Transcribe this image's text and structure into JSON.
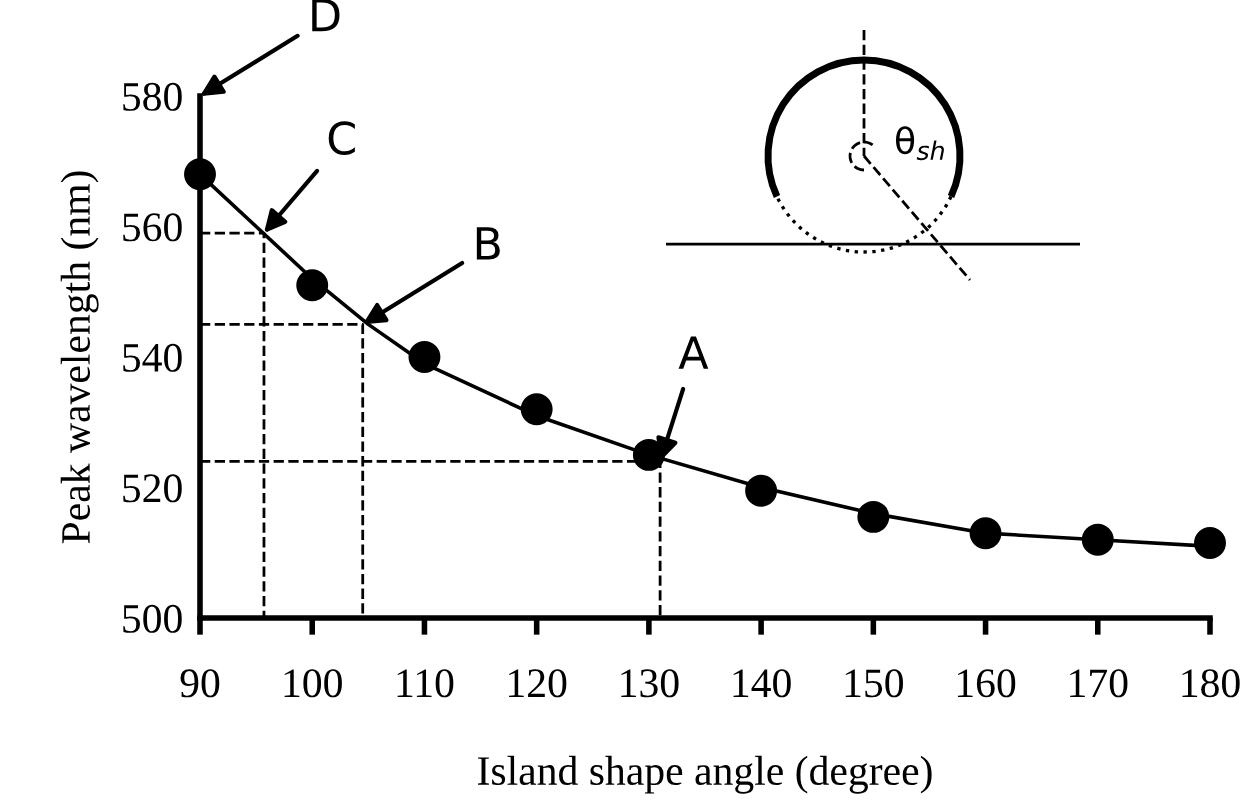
{
  "chart_data": {
    "type": "scatter",
    "xlabel": "Island shape angle (degree)",
    "ylabel": "Peak wavelength (nm)",
    "xlim": [
      90,
      180
    ],
    "xticks": [
      90,
      100,
      110,
      120,
      130,
      140,
      150,
      160,
      170,
      180
    ],
    "ylim": [
      500,
      580
    ],
    "yticks": [
      500,
      520,
      540,
      560,
      580
    ],
    "grid": false,
    "legend": false,
    "series": [
      {
        "type": "line",
        "color": "#000000",
        "x": [
          90,
          95,
          100,
          105,
          110,
          115,
          120,
          130,
          140,
          150,
          160,
          170,
          180
        ],
        "values": [
          568,
          560,
          552,
          545,
          539,
          535,
          531,
          525,
          520,
          516,
          513,
          512,
          511
        ]
      },
      {
        "type": "line",
        "color": "#000000",
        "line_style": "dashed",
        "x": [
          90,
          95.7,
          95.7
        ],
        "values": [
          559,
          559,
          500
        ]
      },
      {
        "type": "line",
        "color": "#000000",
        "line_style": "dashed",
        "x": [
          90,
          104.5,
          104.5
        ],
        "values": [
          545,
          545,
          500
        ]
      },
      {
        "type": "line",
        "color": "#000000",
        "line_style": "dashed",
        "x": [
          90,
          131,
          131
        ],
        "values": [
          524,
          524,
          500
        ]
      },
      {
        "color": "#000000",
        "marker": "circle",
        "x": [
          90,
          100,
          110,
          120,
          130,
          140,
          150,
          160,
          170,
          180
        ],
        "values": [
          568,
          551,
          540,
          532,
          525,
          519.5,
          515.5,
          513,
          512,
          511.5
        ]
      }
    ],
    "annotations": [
      {
        "text": "A",
        "x": 131,
        "y": 524
      },
      {
        "text": "B",
        "x": 104.5,
        "y": 545
      },
      {
        "text": "C",
        "x": 95.7,
        "y": 559
      },
      "D",
      "θ$_{sh}$"
    ]
  }
}
